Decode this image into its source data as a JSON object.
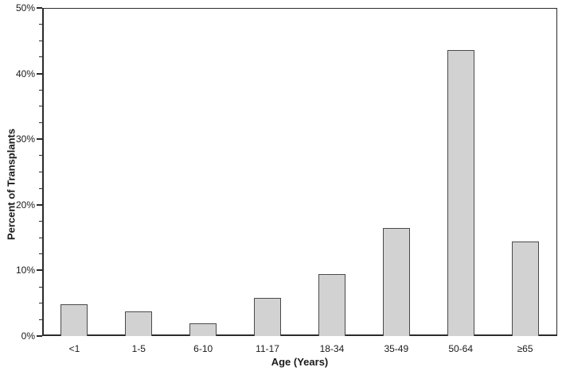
{
  "chart_data": {
    "type": "bar",
    "title": "",
    "xlabel": "Age (Years)",
    "ylabel": "Percent of Transplants",
    "categories": [
      "<1",
      "1-5",
      "6-10",
      "11-17",
      "18-34",
      "35-49",
      "50-64",
      "≥65"
    ],
    "values": [
      4.8,
      3.8,
      1.9,
      5.8,
      9.4,
      16.5,
      43.6,
      14.4
    ],
    "ylim": [
      0,
      50
    ],
    "y_major_tick_step": 10,
    "y_minor_tick_step": 2.5,
    "y_tick_labels": [
      "0%",
      "10%",
      "20%",
      "30%",
      "40%",
      "50%"
    ],
    "grid": false,
    "legend": false,
    "frame": "full-box",
    "colors": {
      "bar_fill": "#d2d2d2",
      "bar_border": "#4a4a4a",
      "axis": "#2b2b2b",
      "text": "#1a1a1a",
      "background": "#ffffff"
    }
  }
}
